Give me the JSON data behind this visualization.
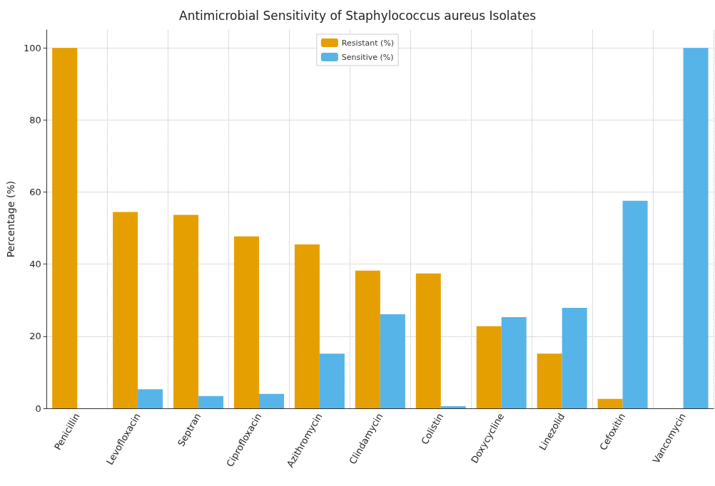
{
  "chart_data": {
    "type": "bar",
    "title": "Antimicrobial Sensitivity of Staphylococcus aureus Isolates",
    "ylabel": "Percentage (%)",
    "categories": [
      "Penicillin",
      "Levofloxacin",
      "Septran",
      "Ciprofloxacin",
      "Azithromycin",
      "Clindamycin",
      "Colistin",
      "Doxycycline",
      "Linezolid",
      "Cefoxitin",
      "Vancomycin"
    ],
    "series": [
      {
        "name": "Resistant (%)",
        "color": "#e69f00",
        "values": [
          100,
          54.5,
          53.7,
          47.7,
          45.5,
          38.2,
          37.4,
          22.8,
          15.2,
          2.6,
          0
        ]
      },
      {
        "name": "Sensitive (%)",
        "color": "#56b4e9",
        "values": [
          0,
          5.3,
          3.4,
          4.0,
          15.2,
          26.1,
          0.6,
          25.3,
          27.9,
          57.6,
          100
        ]
      }
    ],
    "ylim": [
      0,
      105
    ],
    "yticks": [
      0,
      20,
      40,
      60,
      80,
      100
    ],
    "grid": true,
    "legend": "top"
  }
}
